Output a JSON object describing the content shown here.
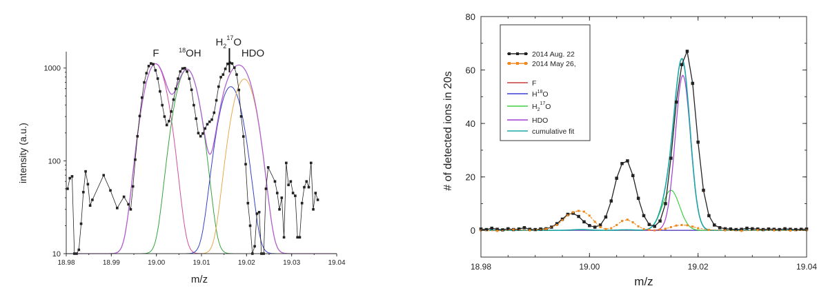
{
  "chart_data": [
    {
      "type": "line",
      "xlabel": "m/z",
      "ylabel": "intensity (a.u.)",
      "yscale": "log",
      "xlim": [
        18.98,
        19.04
      ],
      "ylim": [
        10,
        1500
      ],
      "xticks": [
        "18.98",
        "18.99",
        "19.00",
        "19.01",
        "19.02",
        "19.03",
        "19.04"
      ],
      "yticks": [
        "10",
        "100",
        "1000"
      ],
      "annotations": [
        {
          "text": "F",
          "x": 18.9998
        },
        {
          "text": "18",
          "suffix": "OH",
          "x": 19.0068
        },
        {
          "text": "H",
          "sub": "2",
          "sup": "17",
          "tail": "O",
          "x": 19.0165
        },
        {
          "text": "HDO",
          "x": 19.0213
        }
      ],
      "series": [
        {
          "color": "#222222",
          "markers": true,
          "x": [
            18.9803,
            18.9808,
            18.9813,
            18.9818,
            18.9823,
            18.9828,
            18.9833,
            18.9838,
            18.9843,
            18.9848,
            18.9853,
            18.9858,
            18.9883,
            18.9898,
            18.9913,
            18.9928,
            18.9938,
            18.9943,
            18.9948,
            18.9953,
            18.9958,
            18.9963,
            18.9968,
            18.9973,
            18.9978,
            18.9983,
            18.9988,
            18.9993,
            18.9998,
            19.0003,
            19.0008,
            19.0013,
            19.0018,
            19.0023,
            19.0028,
            19.0033,
            19.0038,
            19.0043,
            19.0048,
            19.0053,
            19.0058,
            19.0063,
            19.0068,
            19.0073,
            19.0078,
            19.0083,
            19.0088,
            19.0093,
            19.0098,
            19.0103,
            19.0108,
            19.0113,
            19.0118,
            19.0123,
            19.0128,
            19.0133,
            19.0138,
            19.0143,
            19.0148,
            19.0153,
            19.0158,
            19.0163,
            19.0168,
            19.0173,
            19.0178,
            19.0183,
            19.0188,
            19.0193,
            19.0198,
            19.0203,
            19.0208,
            19.0213,
            19.0218,
            19.0223,
            19.0228,
            19.0233,
            19.0238,
            19.0243,
            19.0248,
            19.0263,
            19.0268,
            19.0273,
            19.0278,
            19.0283,
            19.0288,
            19.0293,
            19.0298,
            19.0303,
            19.0308,
            19.0313,
            19.0318,
            19.0323,
            19.0328,
            19.0333,
            19.0338,
            19.0343,
            19.0348,
            19.0353,
            19.0358
          ],
          "y": [
            50,
            65,
            68,
            10,
            10,
            11,
            21,
            46,
            77,
            56,
            33,
            38,
            70,
            48,
            31,
            41,
            34,
            30,
            53,
            103,
            184,
            304,
            480,
            700,
            880,
            1050,
            1120,
            1100,
            945,
            770,
            560,
            398,
            300,
            243,
            268,
            340,
            457,
            598,
            768,
            918,
            988,
            996,
            917,
            768,
            583,
            398,
            285,
            199,
            184,
            197,
            223,
            248,
            264,
            278,
            330,
            449,
            630,
            798,
            850,
            980,
            1110,
            1140,
            1120,
            1010,
            850,
            580,
            301,
            183,
            92,
            35,
            20,
            10,
            12,
            27,
            28,
            10,
            10,
            50,
            85,
            60,
            45,
            30,
            40,
            15,
            95,
            55,
            60,
            45,
            42,
            15,
            15,
            35,
            52,
            60,
            52,
            95,
            30,
            45,
            38
          ]
        },
        {
          "name": "F",
          "color": "#d24d9b",
          "gaussian": {
            "center": 18.9998,
            "amp": 1100,
            "sigma": 0.0021
          }
        },
        {
          "name": "18OH",
          "color": "#33a33a",
          "gaussian": {
            "center": 19.0068,
            "amp": 960,
            "sigma": 0.0021
          }
        },
        {
          "name": "H2 17O",
          "color": "#3340c8",
          "gaussian": {
            "center": 19.0165,
            "amp": 620,
            "sigma": 0.0021
          }
        },
        {
          "name": "HDO",
          "color": "#e6a94a",
          "gaussian": {
            "center": 19.0195,
            "amp": 750,
            "sigma": 0.0021
          }
        },
        {
          "name": "cumulative",
          "color": "#b060d0",
          "sum": true
        }
      ]
    },
    {
      "type": "line",
      "xlabel": "m/z",
      "ylabel": "# of detected ions in 20s",
      "xlim": [
        18.98,
        19.04
      ],
      "ylim": [
        -10,
        80
      ],
      "xticks": [
        "18.98",
        "19.00",
        "19.02",
        "19.04"
      ],
      "yticks": [
        "0",
        "20",
        "40",
        "60",
        "80"
      ],
      "legend": [
        {
          "label": "2014 Aug. 22",
          "color": "#222222",
          "markers": true
        },
        {
          "label": "2014 May 26,",
          "color": "#f08a1e",
          "markers": true
        },
        {
          "label": "F",
          "color": "#c63b3b"
        },
        {
          "label": "H",
          "sup": "18",
          "tail": "O",
          "color": "#3a3ad6"
        },
        {
          "label": "H",
          "sub": "2",
          "sup": "17",
          "tail": "O",
          "color": "#3fcf3f"
        },
        {
          "label": "HDO",
          "color": "#a23ad6"
        },
        {
          "label": "cumulative fit",
          "color": "#1aa5a5"
        }
      ],
      "series": [
        {
          "name": "2014 Aug. 22",
          "color": "#222222",
          "markers": true,
          "x": [
            18.98,
            18.981,
            18.982,
            18.983,
            18.984,
            18.985,
            18.986,
            18.987,
            18.988,
            18.989,
            18.99,
            18.991,
            18.992,
            18.993,
            18.994,
            18.995,
            18.996,
            18.997,
            18.998,
            18.999,
            19.0,
            19.001,
            19.002,
            19.003,
            19.004,
            19.005,
            19.006,
            19.007,
            19.008,
            19.009,
            19.01,
            19.011,
            19.012,
            19.013,
            19.014,
            19.015,
            19.016,
            19.017,
            19.018,
            19.019,
            19.02,
            19.021,
            19.022,
            19.023,
            19.024,
            19.025,
            19.026,
            19.027,
            19.028,
            19.029,
            19.03,
            19.031,
            19.032,
            19.033,
            19.034,
            19.035,
            19.036,
            19.037,
            19.038,
            19.039,
            19.04
          ],
          "y": [
            0.5,
            0.3,
            0.8,
            0.4,
            0.2,
            0.6,
            0.3,
            0.5,
            1.0,
            0.4,
            0.3,
            0.5,
            0.6,
            1.2,
            2.5,
            4.2,
            6.0,
            6.4,
            5.2,
            3.2,
            1.8,
            1.2,
            2.0,
            5.0,
            11.0,
            19.5,
            25.0,
            26.0,
            20.5,
            12.0,
            5.5,
            2.2,
            1.5,
            3.5,
            10.0,
            27.0,
            48.0,
            62.0,
            67.0,
            55.0,
            33.0,
            15.0,
            5.5,
            2.0,
            1.0,
            0.6,
            0.5,
            0.3,
            0.4,
            0.8,
            0.6,
            0.5,
            0.3,
            0.5,
            0.4,
            0.3,
            0.6,
            0.4,
            0.3,
            0.4,
            0.5
          ]
        },
        {
          "name": "2014 May 26,",
          "color": "#f08a1e",
          "markers": true,
          "x": [
            18.98,
            18.983,
            18.986,
            18.989,
            18.992,
            18.994,
            18.995,
            18.996,
            18.997,
            18.998,
            18.999,
            19.0,
            19.001,
            19.002,
            19.003,
            19.004,
            19.005,
            19.006,
            19.007,
            19.008,
            19.009,
            19.01,
            19.011,
            19.012,
            19.013,
            19.014,
            19.015,
            19.016,
            19.017,
            19.018,
            19.019,
            19.02,
            19.022,
            19.025,
            19.028,
            19.031,
            19.034,
            19.037,
            19.04
          ],
          "y": [
            0,
            -0.2,
            0.3,
            0,
            0.5,
            2.0,
            3.8,
            5.6,
            6.8,
            7.3,
            7.0,
            5.5,
            3.2,
            1.2,
            0.5,
            0.8,
            2.0,
            3.5,
            4.0,
            3.0,
            1.5,
            0.5,
            0.2,
            0,
            0.3,
            0.6,
            1.2,
            1.8,
            2.0,
            1.9,
            1.4,
            0.8,
            0.2,
            0,
            -0.2,
            0.1,
            0,
            -0.1,
            0
          ]
        },
        {
          "name": "F",
          "color": "#c63b3b",
          "gaussian": {
            "center": 18.9985,
            "amp": 0.3,
            "sigma": 0.0016
          }
        },
        {
          "name": "H18O",
          "color": "#3a3ad6",
          "gaussian": {
            "center": 19.0068,
            "amp": 0.2,
            "sigma": 0.0016
          }
        },
        {
          "name": "H2 17O",
          "color": "#3fcf3f",
          "gaussian": {
            "center": 19.015,
            "amp": 15,
            "sigma": 0.0016
          }
        },
        {
          "name": "HDO",
          "color": "#a23ad6",
          "gaussian": {
            "center": 19.0172,
            "amp": 58,
            "sigma": 0.0014
          }
        },
        {
          "name": "cumulative fit",
          "color": "#1aa5a5",
          "cumulative": true
        }
      ]
    }
  ]
}
